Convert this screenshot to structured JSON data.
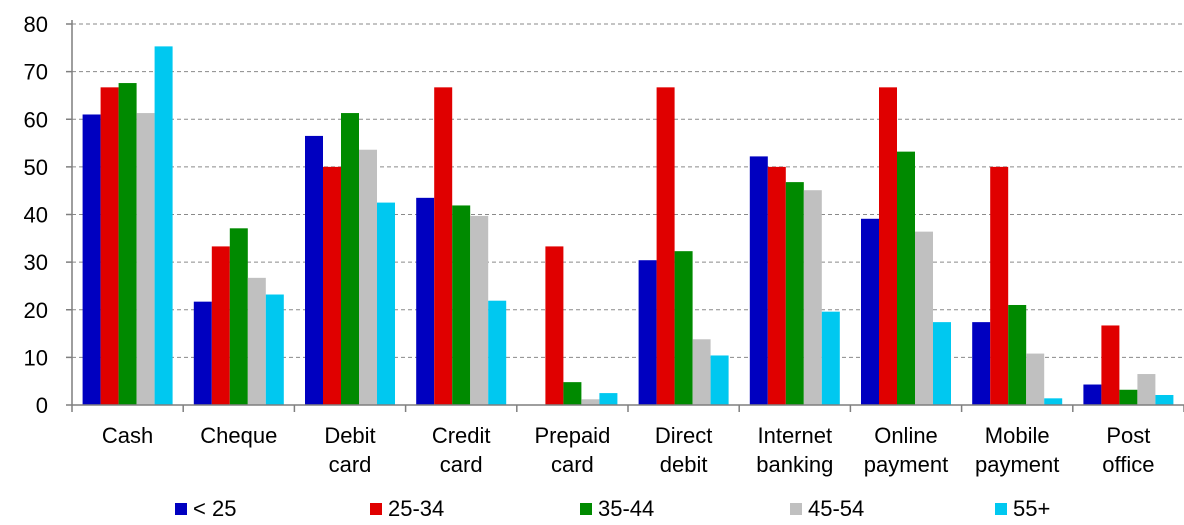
{
  "chart_data": {
    "type": "bar",
    "categories": [
      [
        "Cash"
      ],
      [
        "Cheque"
      ],
      [
        "Debit",
        "card"
      ],
      [
        "Credit",
        "card"
      ],
      [
        "Prepaid",
        "card"
      ],
      [
        "Direct",
        "debit"
      ],
      [
        "Internet",
        "banking"
      ],
      [
        "Online",
        "payment"
      ],
      [
        "Mobile",
        "payment"
      ],
      [
        "Post",
        "office"
      ]
    ],
    "series": [
      {
        "name": "< 25",
        "color": "#0000C0",
        "values": [
          61,
          21.7,
          56.5,
          43.5,
          0,
          30.4,
          52.2,
          39.1,
          17.4,
          4.3
        ]
      },
      {
        "name": "25-34",
        "color": "#E00000",
        "values": [
          66.7,
          33.3,
          50,
          66.7,
          33.3,
          66.7,
          50,
          66.7,
          50,
          16.7
        ]
      },
      {
        "name": "35-44",
        "color": "#008A00",
        "values": [
          67.6,
          37.1,
          61.3,
          41.9,
          4.8,
          32.3,
          46.8,
          53.2,
          21,
          3.2
        ]
      },
      {
        "name": "45-54",
        "color": "#C0C0C0",
        "values": [
          61.3,
          26.7,
          53.6,
          39.7,
          1.2,
          13.8,
          45.1,
          36.4,
          10.8,
          6.5
        ]
      },
      {
        "name": "55+",
        "color": "#00C8F0",
        "values": [
          75.3,
          23.2,
          42.5,
          21.9,
          2.5,
          10.4,
          19.6,
          17.4,
          1.4,
          2.1
        ]
      }
    ],
    "ylim": [
      0,
      80
    ],
    "yticks": [
      0,
      10,
      20,
      30,
      40,
      50,
      60,
      70,
      80
    ],
    "grid": true,
    "legend_position": "bottom",
    "title": "",
    "xlabel": "",
    "ylabel": ""
  }
}
